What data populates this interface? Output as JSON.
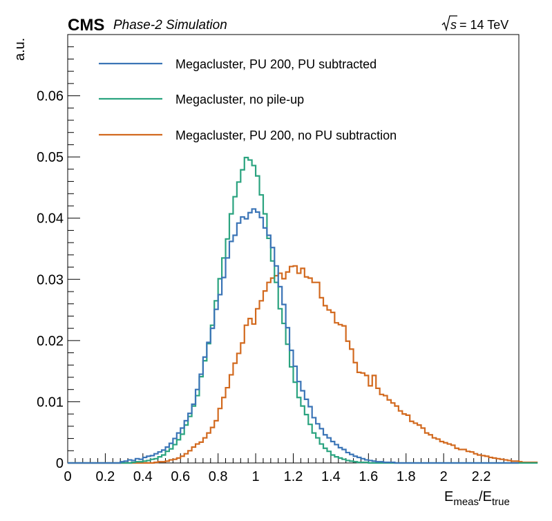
{
  "header": {
    "experiment": "CMS",
    "subtitle": "Phase-2 Simulation",
    "energy_value": "= 14 TeV"
  },
  "chart_data": {
    "type": "line",
    "style": "step-histogram",
    "xlabel_main": "E",
    "xlabel_sub1": "meas",
    "xlabel_mid": "/E",
    "xlabel_sub2": "true",
    "ylabel": "a.u.",
    "xlim": [
      0,
      2.4
    ],
    "ylim": [
      0,
      0.07
    ],
    "x_ticks": [
      0,
      0.2,
      0.4,
      0.6,
      0.8,
      1,
      1.2,
      1.4,
      1.6,
      1.8,
      2,
      2.2
    ],
    "x_tick_labels": [
      "0",
      "0.2",
      "0.4",
      "0.6",
      "0.8",
      "1",
      "1.2",
      "1.4",
      "1.6",
      "1.8",
      "2",
      "2.2"
    ],
    "y_ticks": [
      0,
      0.01,
      0.02,
      0.03,
      0.04,
      0.05,
      0.06
    ],
    "y_tick_labels": [
      "0",
      "0.01",
      "0.02",
      "0.03",
      "0.04",
      "0.05",
      "0.06"
    ],
    "bin_start": 0,
    "bin_width": 0.02,
    "legend_position": "top-left",
    "grid": false,
    "series": [
      {
        "name": "Megacluster, PU 200, PU subtracted",
        "color": "#3a74b6",
        "values": [
          0,
          0,
          0,
          0,
          0,
          0,
          0,
          0,
          0,
          0,
          0,
          0,
          0,
          0,
          0.0002,
          0.0003,
          0.0005,
          0.0004,
          0.0007,
          0.0006,
          0.0009,
          0.0011,
          0.0012,
          0.0015,
          0.0018,
          0.0021,
          0.0026,
          0.0032,
          0.004,
          0.0049,
          0.0057,
          0.0069,
          0.0081,
          0.0096,
          0.012,
          0.0145,
          0.0173,
          0.0197,
          0.022,
          0.0251,
          0.0275,
          0.0303,
          0.0335,
          0.0362,
          0.0372,
          0.0392,
          0.0402,
          0.0399,
          0.0409,
          0.0415,
          0.041,
          0.0401,
          0.0384,
          0.0372,
          0.0352,
          0.0322,
          0.0288,
          0.0259,
          0.0221,
          0.0184,
          0.0158,
          0.0133,
          0.0118,
          0.0104,
          0.0092,
          0.0074,
          0.0064,
          0.0056,
          0.0046,
          0.0041,
          0.0035,
          0.003,
          0.0025,
          0.0022,
          0.0017,
          0.0014,
          0.0011,
          0.0009,
          0.0007,
          0.0005,
          0.0004,
          0.0003,
          0.0002,
          0.0002,
          0.0001,
          0.0001,
          0.0001,
          0,
          0,
          0,
          0,
          0,
          0,
          0,
          0,
          0,
          0,
          0,
          0,
          0,
          0,
          0,
          0,
          0,
          0,
          0,
          0,
          0,
          0,
          0,
          0,
          0,
          0,
          0,
          0,
          0,
          0,
          0,
          0,
          0
        ]
      },
      {
        "name": "Megacluster, no pile-up",
        "color": "#2aa37f",
        "values": [
          0,
          0,
          0,
          0,
          0,
          0,
          0,
          0,
          0,
          0,
          0,
          0,
          0,
          0,
          0,
          0,
          0,
          0.0001,
          0.0002,
          0.0002,
          0.0003,
          0.0004,
          0.0006,
          0.0007,
          0.001,
          0.0013,
          0.0019,
          0.0023,
          0.003,
          0.0038,
          0.0047,
          0.0062,
          0.0076,
          0.0093,
          0.011,
          0.0141,
          0.0167,
          0.0195,
          0.0225,
          0.0265,
          0.0301,
          0.0335,
          0.0366,
          0.0407,
          0.0435,
          0.0459,
          0.0479,
          0.0499,
          0.0495,
          0.0486,
          0.0469,
          0.0438,
          0.0407,
          0.0367,
          0.033,
          0.0295,
          0.0252,
          0.0228,
          0.0194,
          0.0157,
          0.0132,
          0.0107,
          0.0093,
          0.0079,
          0.0063,
          0.0049,
          0.0041,
          0.0031,
          0.0024,
          0.0019,
          0.0013,
          0.001,
          0.0008,
          0.0006,
          0.0004,
          0.0003,
          0.0002,
          0.0001,
          0.0001,
          0.0001,
          0,
          0,
          0,
          0,
          0,
          0,
          0,
          0,
          0,
          0,
          0,
          0,
          0,
          0,
          0,
          0,
          0,
          0,
          0,
          0,
          0,
          0,
          0,
          0,
          0,
          0,
          0,
          0,
          0,
          0,
          0,
          0,
          0,
          0,
          0,
          0,
          0,
          0,
          0,
          0,
          0,
          0,
          0,
          0,
          0,
          0
        ]
      },
      {
        "name": "Megacluster, PU 200, no PU subtraction",
        "color": "#d2691e",
        "values": [
          0,
          0,
          0,
          0,
          0,
          0,
          0,
          0,
          0,
          0,
          0,
          0,
          0,
          0,
          0,
          0,
          0,
          0,
          0,
          0,
          0,
          0,
          0,
          0.0001,
          0.0002,
          0.0002,
          0.0003,
          0.0005,
          0.0006,
          0.0008,
          0.0011,
          0.0015,
          0.002,
          0.0026,
          0.0031,
          0.0034,
          0.0041,
          0.0049,
          0.0058,
          0.0069,
          0.0089,
          0.0107,
          0.0123,
          0.0144,
          0.0163,
          0.0179,
          0.0196,
          0.0225,
          0.0236,
          0.0227,
          0.0252,
          0.0265,
          0.0281,
          0.0295,
          0.0302,
          0.0306,
          0.031,
          0.0301,
          0.0312,
          0.0321,
          0.0322,
          0.031,
          0.0318,
          0.0304,
          0.0302,
          0.0295,
          0.0295,
          0.027,
          0.0257,
          0.025,
          0.0246,
          0.0229,
          0.0226,
          0.0224,
          0.0199,
          0.0186,
          0.0164,
          0.0148,
          0.0147,
          0.0143,
          0.0126,
          0.0143,
          0.0122,
          0.0112,
          0.011,
          0.0103,
          0.0098,
          0.0093,
          0.0085,
          0.008,
          0.0078,
          0.0068,
          0.0065,
          0.0062,
          0.0057,
          0.0049,
          0.0046,
          0.0041,
          0.0039,
          0.0035,
          0.0033,
          0.0031,
          0.0029,
          0.0024,
          0.0022,
          0.0022,
          0.0019,
          0.0018,
          0.0015,
          0.0013,
          0.0012,
          0.0011,
          0.0009,
          0.0008,
          0.0007,
          0.0006,
          0.0005,
          0.0004,
          0.0003,
          0.0003,
          0.0002,
          0.0002,
          0.0001,
          0.0001,
          0.0001,
          0.0001
        ]
      }
    ]
  }
}
